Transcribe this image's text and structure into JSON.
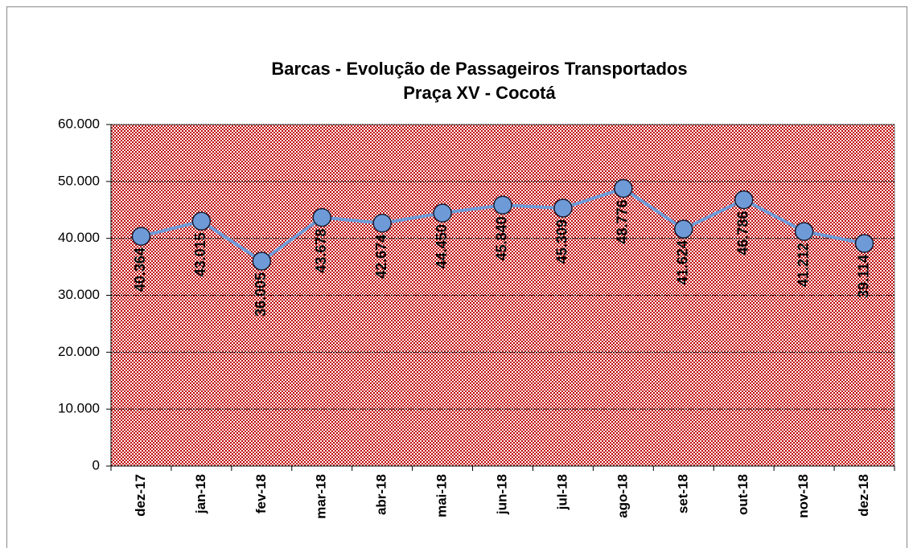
{
  "chart_data": {
    "type": "line",
    "title": "Barcas - Evolução de Passageiros Transportados",
    "subtitle": "Praça XV - Cocotá",
    "categories": [
      "dez-17",
      "jan-18",
      "fev-18",
      "mar-18",
      "abr-18",
      "mai-18",
      "jun-18",
      "jul-18",
      "ago-18",
      "set-18",
      "out-18",
      "nov-18",
      "dez-18"
    ],
    "values": [
      40364,
      43015,
      36005,
      43678,
      42674,
      44450,
      45840,
      45309,
      48776,
      41624,
      46786,
      41212,
      39114
    ],
    "value_labels": [
      "40.364",
      "43.015",
      "36.005",
      "43.678",
      "42.674",
      "44.450",
      "45.840",
      "45.309",
      "48.776",
      "41.624",
      "46.786",
      "41.212",
      "39.114"
    ],
    "color": "#6e9bd8",
    "ylim": [
      0,
      60000
    ],
    "yticks": [
      0,
      {
        "value": 10000,
        "label": "10.000"
      },
      {
        "value": 20000,
        "label": "20.000"
      },
      {
        "value": 30000,
        "label": "30.000"
      },
      {
        "value": 40000,
        "label": "40.000"
      },
      {
        "value": 50000,
        "label": "50.000"
      },
      {
        "value": 60000,
        "label": "60.000"
      }
    ],
    "grid": true
  }
}
